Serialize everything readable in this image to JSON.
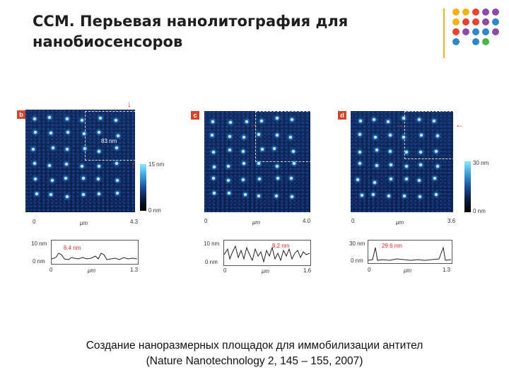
{
  "slide": {
    "title": "ССМ. Перьевая нанолитография для нанобиосенсоров",
    "caption_line1": "Создание наноразмерных площадок для иммобилизации антител",
    "caption_line2": "(Nature Nanotechnology 2, 145 – 155, 2007)"
  },
  "decor": {
    "accent_line_color": "#f2b318",
    "dot_colors": [
      "#f2b318",
      "#f2b318",
      "#e8432e",
      "#8f4aa5",
      "#8f4aa5",
      "#f2b318",
      "#e8432e",
      "#e8432e",
      "#8f4aa5",
      "#2f87c8",
      "#e8432e",
      "#8f4aa5",
      "#2f87c8",
      "#2f87c8",
      "#8f4aa5",
      "#2f87c8",
      "#2f87c8",
      "#4ab34a",
      "#4ab34a",
      "#4ab34a"
    ]
  },
  "panels": [
    {
      "label": "b",
      "x_start": "0",
      "x_unit": "μm",
      "x_end": "4.3",
      "inset_measure": "83 nm",
      "colorbar_top": "15 nm",
      "colorbar_bottom": "0 nm",
      "scan_ytop": "10 nm",
      "scan_ybottom": "0 nm",
      "scan_measure": "6.4 nm",
      "scan_x_start": "0",
      "scan_x_unit": "μm",
      "scan_x_end": "1.3"
    },
    {
      "label": "c",
      "x_start": "0",
      "x_unit": "μm",
      "x_end": "4.0",
      "scan_ytop": "10 nm",
      "scan_ybottom": "0 nm",
      "scan_measure": "9.2 nm",
      "scan_x_start": "0",
      "scan_x_unit": "μm",
      "scan_x_end": "1.6"
    },
    {
      "label": "d",
      "x_start": "0",
      "x_unit": "μm",
      "x_end": "3.6",
      "colorbar_top": "30 nm",
      "colorbar_bottom": "0 nm",
      "scan_ytop": "30 nm",
      "scan_ybottom": "0 nm",
      "scan_measure": "29.6 nm",
      "scan_x_start": "0",
      "scan_x_unit": "μm",
      "scan_x_end": "1.3"
    }
  ]
}
